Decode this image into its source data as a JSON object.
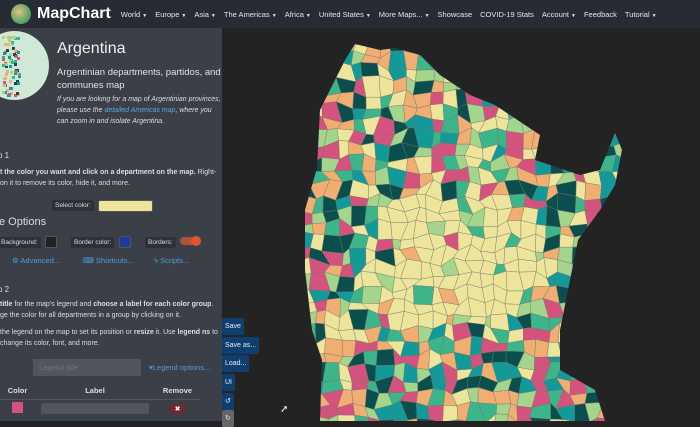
{
  "nav": {
    "brand": "MapChart",
    "items": [
      {
        "label": "World",
        "dropdown": true
      },
      {
        "label": "Europe",
        "dropdown": true
      },
      {
        "label": "Asia",
        "dropdown": true
      },
      {
        "label": "The Americas",
        "dropdown": true
      },
      {
        "label": "Africa",
        "dropdown": true
      },
      {
        "label": "United States",
        "dropdown": true
      },
      {
        "label": "More Maps...",
        "dropdown": true
      },
      {
        "label": "Showcase",
        "dropdown": false
      },
      {
        "label": "COVID-19 Stats",
        "dropdown": false
      },
      {
        "label": "Account",
        "dropdown": true
      },
      {
        "label": "Feedback",
        "dropdown": false
      },
      {
        "label": "Tutorial",
        "dropdown": true
      }
    ]
  },
  "sidebar": {
    "title": "Argentina",
    "subtitle": "Argentinian departments, partidos, and communes map",
    "note_pre": "If you are looking for a map of Argentinian provinces, please use the ",
    "note_link": "detailed Americas map",
    "note_post": ", where you can zoom in and isolate Argentina.",
    "step1": "p 1",
    "step1_text_a": "t the color you want and click on a department on the map.",
    "step1_text_b": " Right-",
    "step1_text_c": "on it to remove its color, hide it, and more.",
    "select_color_label": "Select color:",
    "selected_color": "#ede59b",
    "options_heading": "e Options",
    "background_label": "Background:",
    "background_color": "#222222",
    "border_color_label": "Border color:",
    "border_color": "#1f3a9e",
    "borders_label": "Borders:",
    "borders_on": true,
    "advanced": "Advanced...",
    "shortcuts": "Shortcuts...",
    "scripts": "Scripts...",
    "step2": "p 2",
    "step2_line1_a": "title",
    "step2_line1_b": " for the map's legend and ",
    "step2_line1_c": "choose a label for each color group",
    "step2_line1_d": ".",
    "step2_line2": "ge the color for all departments in a group by clicking on it.",
    "step2_line3_a": "the legend on the map to set its position or ",
    "step2_line3_b": "resize",
    "step2_line3_c": " it. Use ",
    "step2_line3_d": "legend",
    "step2_line4_a": "ns",
    "step2_line4_b": " to change its color, font, and more.",
    "legend_title_placeholder": "Legend title",
    "legend_options": "Legend options...",
    "table": {
      "headers": [
        "Color",
        "Label",
        "Remove"
      ],
      "rows": [
        {
          "color": "#d6527e",
          "label": ""
        },
        {
          "color": "#f0a868",
          "label": ""
        }
      ]
    }
  },
  "map_buttons": {
    "save": "Save",
    "save_as": "Save as...",
    "load": "Load...",
    "ui": "UI"
  },
  "map_colors": {
    "pink": "#d6527e",
    "orange": "#f0ae72",
    "yellow": "#ede59b",
    "lightgreen": "#a3d58c",
    "green": "#3db58a",
    "teal": "#129a9a",
    "darkteal": "#0a4f4e"
  }
}
